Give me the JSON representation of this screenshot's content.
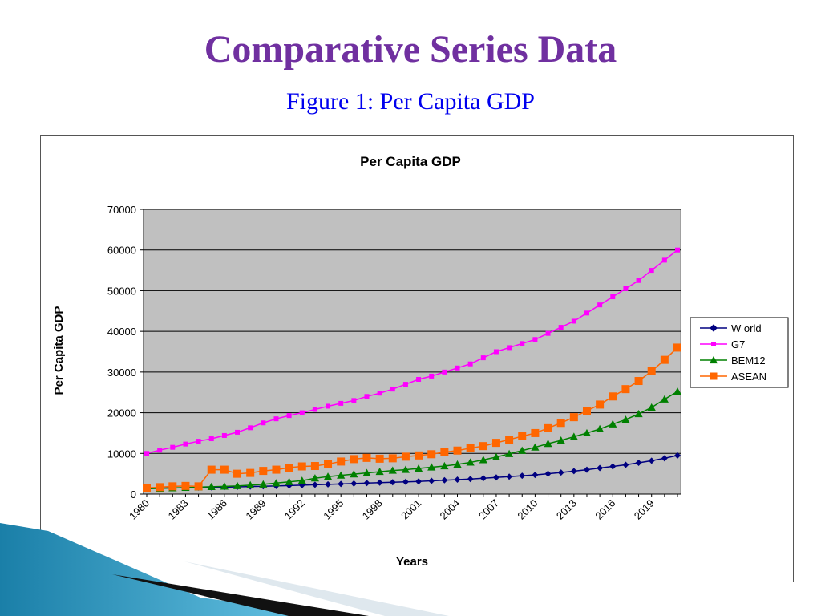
{
  "slide": {
    "title": "Comparative Series Data",
    "subtitle": "Figure 1: Per Capita GDP",
    "title_color": "#7030a0",
    "subtitle_color": "#0000ee"
  },
  "chart_data": {
    "type": "line",
    "title": "Per Capita GDP",
    "xlabel": "Years",
    "ylabel": "Per Capita GDP",
    "ylim": [
      0,
      70000
    ],
    "yticks": [
      0,
      10000,
      20000,
      30000,
      40000,
      50000,
      60000,
      70000
    ],
    "x_tick_labels": [
      "1980",
      "1983",
      "1986",
      "1989",
      "1992",
      "1995",
      "1998",
      "2001",
      "2004",
      "2007",
      "2010",
      "2013",
      "2016",
      "2019"
    ],
    "x": [
      1980,
      1981,
      1982,
      1983,
      1984,
      1985,
      1986,
      1987,
      1988,
      1989,
      1990,
      1991,
      1992,
      1993,
      1994,
      1995,
      1996,
      1997,
      1998,
      1999,
      2000,
      2001,
      2002,
      2003,
      2004,
      2005,
      2006,
      2007,
      2008,
      2009,
      2010,
      2011,
      2012,
      2013,
      2014,
      2015,
      2016,
      2017,
      2018,
      2019,
      2020,
      2021
    ],
    "plot_background": "#c0c0c0",
    "grid": "horizontal",
    "legend_position": "right",
    "series": [
      {
        "name": "W orld",
        "color": "#000080",
        "marker": "diamond",
        "values": [
          1400,
          1450,
          1500,
          1550,
          1600,
          1650,
          1700,
          1780,
          1850,
          1920,
          2000,
          2100,
          2200,
          2300,
          2400,
          2500,
          2600,
          2700,
          2800,
          2900,
          3000,
          3100,
          3250,
          3400,
          3550,
          3700,
          3900,
          4100,
          4300,
          4500,
          4700,
          5000,
          5300,
          5650,
          6000,
          6400,
          6800,
          7200,
          7700,
          8200,
          8800,
          9500
        ]
      },
      {
        "name": "G7",
        "color": "#ff00ff",
        "marker": "square",
        "values": [
          10000,
          10800,
          11500,
          12300,
          13000,
          13600,
          14400,
          15200,
          16300,
          17500,
          18500,
          19300,
          20000,
          20800,
          21600,
          22300,
          23000,
          24000,
          24800,
          25800,
          27000,
          28200,
          29000,
          30000,
          31000,
          32000,
          33500,
          35000,
          36000,
          37000,
          38000,
          39500,
          41000,
          42500,
          44500,
          46500,
          48500,
          50500,
          52500,
          55000,
          57500,
          60000
        ]
      },
      {
        "name": "BEM12",
        "color": "#008000",
        "marker": "triangle",
        "values": [
          1300,
          1400,
          1500,
          1600,
          1700,
          1800,
          1900,
          2000,
          2200,
          2400,
          2700,
          3000,
          3300,
          3900,
          4300,
          4600,
          4900,
          5200,
          5500,
          5800,
          6000,
          6300,
          6600,
          6900,
          7300,
          7800,
          8400,
          9100,
          9900,
          10700,
          11500,
          12400,
          13200,
          14100,
          15000,
          16000,
          17200,
          18300,
          19700,
          21300,
          23300,
          25200
        ]
      },
      {
        "name": "ASEAN",
        "color": "#ff6600",
        "marker": "square",
        "values": [
          1500,
          1700,
          1900,
          2000,
          1900,
          6000,
          6000,
          5000,
          5200,
          5700,
          6000,
          6500,
          6800,
          6900,
          7400,
          8000,
          8600,
          8900,
          8700,
          8800,
          9200,
          9500,
          9800,
          10300,
          10700,
          11300,
          11800,
          12600,
          13400,
          14200,
          15000,
          16200,
          17500,
          18900,
          20500,
          22000,
          24000,
          25800,
          27800,
          30200,
          33000,
          36000
        ]
      }
    ]
  }
}
